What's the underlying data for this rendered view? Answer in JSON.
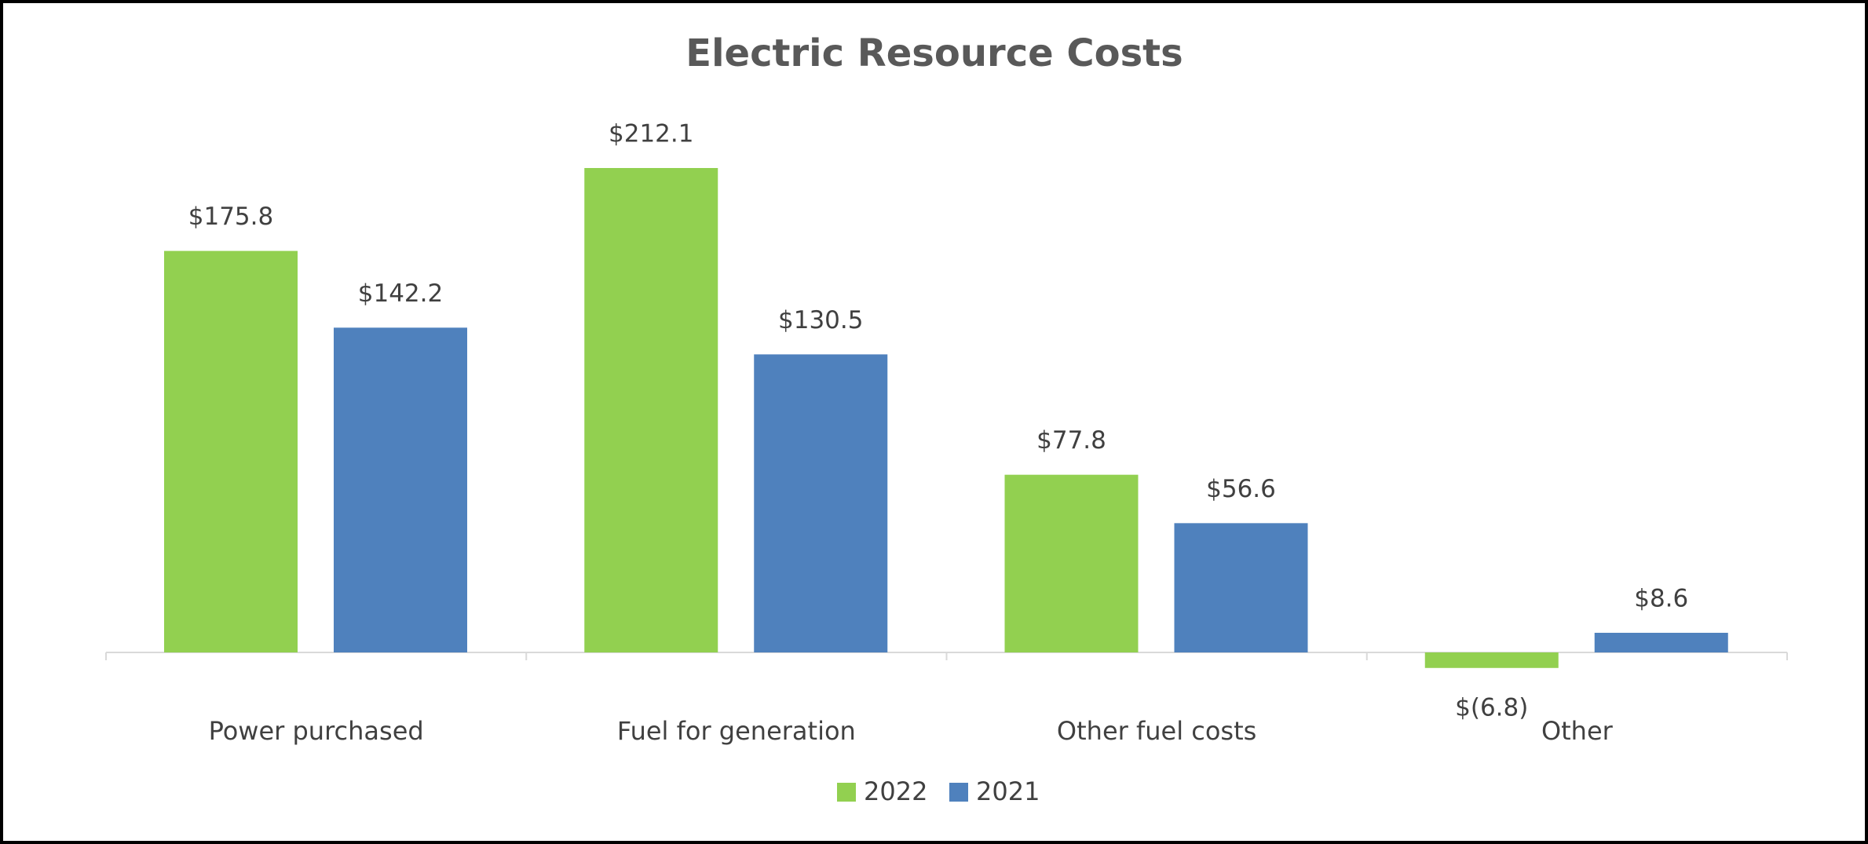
{
  "chart_data": {
    "type": "bar",
    "title": "Electric Resource Costs",
    "categories": [
      "Power purchased",
      "Fuel for generation",
      "Other fuel costs",
      "Other"
    ],
    "series": [
      {
        "name": "2022",
        "color": "#92d050",
        "values": [
          175.8,
          212.1,
          77.8,
          -6.8
        ],
        "value_labels": [
          "$175.8",
          "$212.1",
          "$77.8",
          "$(6.8)"
        ]
      },
      {
        "name": "2021",
        "color": "#4f81bd",
        "values": [
          142.2,
          130.5,
          56.6,
          8.6
        ],
        "value_labels": [
          "$142.2",
          "$130.5",
          "$56.6",
          "$8.6"
        ]
      }
    ],
    "legend": "bottom"
  }
}
